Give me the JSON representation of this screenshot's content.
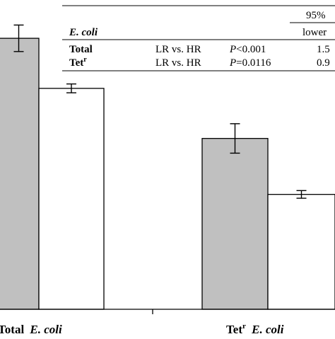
{
  "chart_data": {
    "type": "bar",
    "categories": [
      {
        "main": "Total",
        "organism": "E. coli",
        "superscript": ""
      },
      {
        "main": "Tet",
        "organism": "E. coli",
        "superscript": "r"
      }
    ],
    "series": [
      {
        "color": "#c0c0c0",
        "values": [
          92,
          58
        ],
        "errors": [
          4.5,
          5
        ]
      },
      {
        "color": "#ffffff",
        "values": [
          75,
          39
        ],
        "errors": [
          1.5,
          1.3
        ]
      }
    ],
    "ylim": [
      0,
      105
    ],
    "grid": false,
    "legend": "none"
  },
  "stats_table": {
    "ci_header": "95%",
    "ci_subheader": "lower",
    "organism_header": "E. coli",
    "rows": [
      {
        "label": "Total",
        "label_sup": "",
        "comparison": "LR vs. HR",
        "p_symbol": "P",
        "p_value": "<0.001",
        "ci_lower": "1.5"
      },
      {
        "label": "Tet",
        "label_sup": "r",
        "comparison": "LR vs. HR",
        "p_symbol": "P",
        "p_value": "=0.0116",
        "ci_lower": "0.9"
      }
    ]
  }
}
